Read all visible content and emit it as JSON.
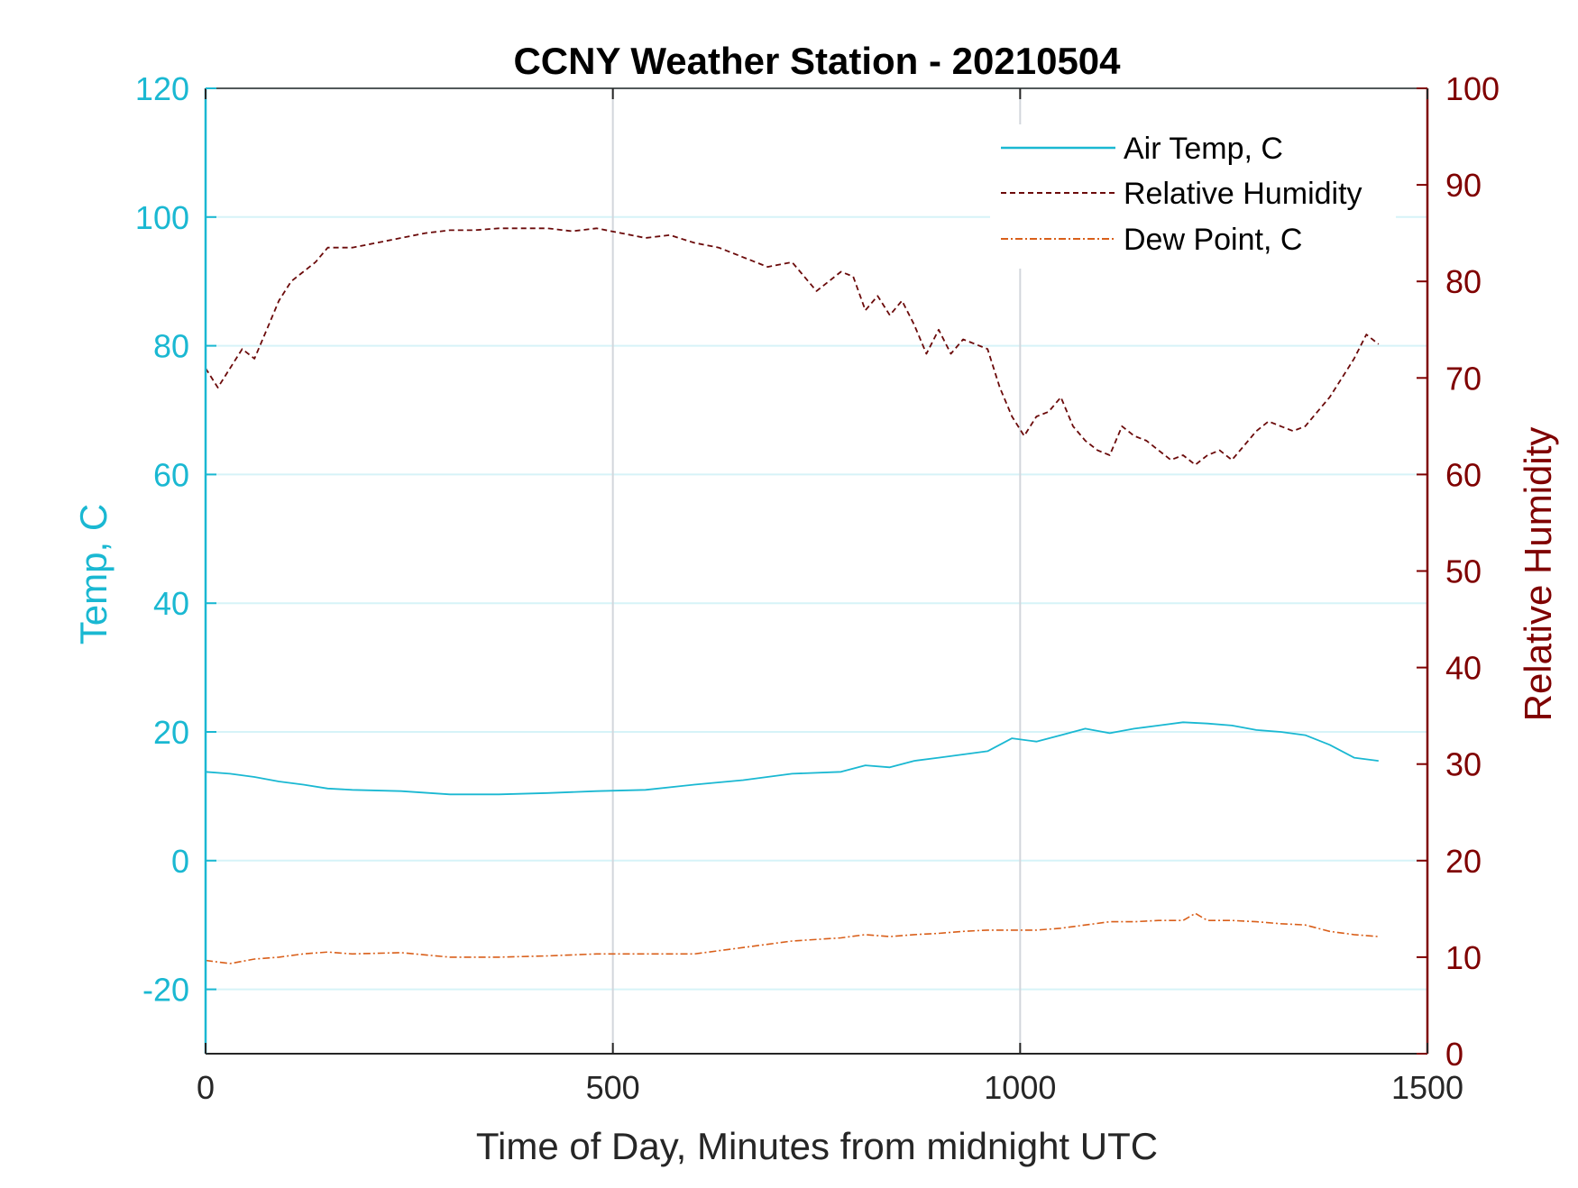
{
  "chart_data": {
    "type": "line",
    "title": "CCNY Weather Station - 20210504",
    "xlabel": "Time of Day, Minutes from midnight UTC",
    "ylabel_left": "Temp, C",
    "ylabel_right": "Relative Humidity",
    "xlim": [
      0,
      1500
    ],
    "ylim_left": [
      -30,
      120
    ],
    "ylim_right": [
      0,
      100
    ],
    "x_ticks": [
      "0",
      "500",
      "1000",
      "1500"
    ],
    "y_ticks_left": [
      "-20",
      "0",
      "20",
      "40",
      "60",
      "80",
      "100",
      "120"
    ],
    "y_ticks_right": [
      "0",
      "10",
      "20",
      "30",
      "40",
      "50",
      "60",
      "70",
      "80",
      "90",
      "100"
    ],
    "grid": {
      "horizontal": true,
      "vertical": true
    },
    "legend_position": "top-right",
    "colors": {
      "temp_axis": "#1ab8d2",
      "humidity_axis": "#7f0000",
      "air_temp": "#1ab8d2",
      "relative_humidity": "#6b0a0a",
      "dew_point": "#d95f1a",
      "horizontal_grid": "#d6f3f8",
      "vertical_grid": "#d2d6dc"
    },
    "series": [
      {
        "name": "Air Temp, C",
        "axis": "left",
        "style": "solid",
        "x": [
          0,
          30,
          60,
          90,
          120,
          150,
          180,
          240,
          300,
          360,
          420,
          480,
          540,
          600,
          660,
          720,
          780,
          810,
          840,
          870,
          900,
          930,
          960,
          990,
          1020,
          1050,
          1080,
          1110,
          1140,
          1170,
          1200,
          1230,
          1260,
          1290,
          1320,
          1350,
          1380,
          1410,
          1440
        ],
        "y": [
          13.8,
          13.5,
          13.0,
          12.3,
          11.8,
          11.2,
          11.0,
          10.8,
          10.3,
          10.3,
          10.5,
          10.8,
          11.0,
          11.8,
          12.5,
          13.5,
          13.8,
          14.8,
          14.5,
          15.5,
          16.0,
          16.5,
          17.0,
          19.0,
          18.5,
          19.5,
          20.5,
          19.8,
          20.5,
          21.0,
          21.5,
          21.3,
          21.0,
          20.3,
          20.0,
          19.5,
          18.0,
          16.0,
          15.5
        ]
      },
      {
        "name": "Relative Humidity",
        "axis": "right",
        "style": "dashed",
        "x": [
          0,
          15,
          30,
          45,
          60,
          75,
          90,
          105,
          120,
          135,
          150,
          180,
          210,
          240,
          270,
          300,
          330,
          360,
          390,
          420,
          450,
          480,
          510,
          540,
          570,
          600,
          630,
          660,
          690,
          720,
          735,
          750,
          765,
          780,
          795,
          810,
          825,
          840,
          855,
          870,
          885,
          900,
          915,
          930,
          945,
          960,
          975,
          990,
          1005,
          1020,
          1035,
          1050,
          1065,
          1080,
          1095,
          1110,
          1125,
          1140,
          1155,
          1170,
          1185,
          1200,
          1215,
          1230,
          1245,
          1260,
          1275,
          1290,
          1305,
          1320,
          1335,
          1350,
          1365,
          1380,
          1395,
          1410,
          1425,
          1440
        ],
        "y": [
          71,
          69,
          71,
          73,
          72,
          75,
          78,
          80,
          81,
          82,
          83.5,
          83.5,
          84,
          84.5,
          85,
          85.3,
          85.3,
          85.5,
          85.5,
          85.5,
          85.2,
          85.5,
          85.0,
          84.5,
          84.8,
          84.0,
          83.5,
          82.5,
          81.5,
          82.0,
          80.5,
          79.0,
          80.0,
          81.0,
          80.5,
          77.0,
          78.5,
          76.5,
          78.0,
          75.5,
          72.5,
          75.0,
          72.5,
          74.0,
          73.5,
          73.0,
          69.0,
          66.0,
          64.0,
          66.0,
          66.5,
          68.0,
          65.0,
          63.5,
          62.5,
          62.0,
          65.0,
          64.0,
          63.5,
          62.5,
          61.5,
          62.0,
          61.0,
          62.0,
          62.5,
          61.5,
          63.0,
          64.5,
          65.5,
          65.0,
          64.5,
          65.0,
          66.5,
          68.0,
          70.0,
          72.0,
          74.5,
          73.5
        ]
      },
      {
        "name": "Dew Point, C",
        "axis": "left",
        "style": "dashdot",
        "x": [
          0,
          30,
          60,
          90,
          120,
          150,
          180,
          240,
          300,
          360,
          420,
          480,
          540,
          600,
          660,
          720,
          780,
          810,
          840,
          870,
          900,
          930,
          960,
          990,
          1020,
          1050,
          1080,
          1110,
          1140,
          1170,
          1200,
          1215,
          1230,
          1260,
          1290,
          1320,
          1350,
          1380,
          1410,
          1440
        ],
        "y": [
          -15.5,
          -16.0,
          -15.3,
          -15.0,
          -14.5,
          -14.2,
          -14.5,
          -14.3,
          -15.0,
          -15.0,
          -14.8,
          -14.5,
          -14.5,
          -14.5,
          -13.5,
          -12.5,
          -12.0,
          -11.5,
          -11.8,
          -11.5,
          -11.3,
          -11.0,
          -10.8,
          -10.8,
          -10.8,
          -10.5,
          -10.0,
          -9.5,
          -9.5,
          -9.3,
          -9.3,
          -8.2,
          -9.3,
          -9.3,
          -9.5,
          -9.8,
          -10.0,
          -11.0,
          -11.5,
          -11.8
        ]
      }
    ]
  }
}
